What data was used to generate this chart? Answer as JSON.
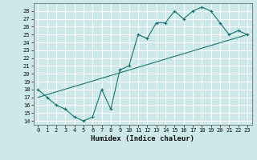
{
  "title": "",
  "xlabel": "Humidex (Indice chaleur)",
  "ylabel": "",
  "bg_color": "#cce8e8",
  "grid_color": "#ffffff",
  "line_color": "#1a7070",
  "xlim": [
    -0.5,
    23.5
  ],
  "ylim": [
    13.5,
    29.0
  ],
  "yticks": [
    14,
    15,
    16,
    17,
    18,
    19,
    20,
    21,
    22,
    23,
    24,
    25,
    26,
    27,
    28
  ],
  "xticks": [
    0,
    1,
    2,
    3,
    4,
    5,
    6,
    7,
    8,
    9,
    10,
    11,
    12,
    13,
    14,
    15,
    16,
    17,
    18,
    19,
    20,
    21,
    22,
    23
  ],
  "curve1_x": [
    0,
    1,
    2,
    3,
    4,
    5,
    6,
    7,
    8,
    9,
    10,
    11,
    12,
    13,
    14,
    15,
    16,
    17,
    18,
    19,
    20,
    21,
    22,
    23
  ],
  "curve1_y": [
    18.0,
    17.0,
    16.0,
    15.5,
    14.5,
    14.0,
    14.5,
    18.0,
    15.5,
    20.5,
    21.0,
    25.0,
    24.5,
    26.5,
    26.5,
    28.0,
    27.0,
    28.0,
    28.5,
    28.0,
    26.5,
    25.0,
    25.5,
    25.0
  ],
  "curve2_x": [
    0,
    23
  ],
  "curve2_y": [
    17.0,
    25.0
  ],
  "font_family": "monospace",
  "tick_fontsize": 5.0,
  "xlabel_fontsize": 6.5
}
